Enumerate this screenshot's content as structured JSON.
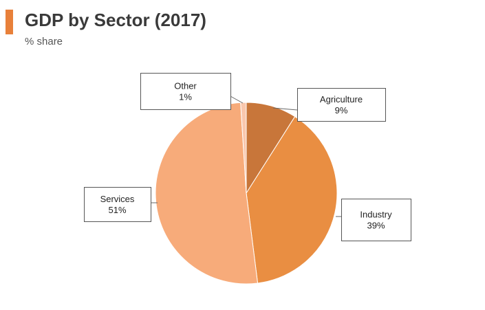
{
  "header": {
    "title": "GDP by Sector (2017)",
    "subtitle": "% share"
  },
  "chart_data": {
    "type": "pie",
    "title": "GDP by Sector (2017)",
    "subtitle": "% share",
    "unit": "%",
    "slices": [
      {
        "label": "Agriculture",
        "value": 9,
        "value_label": "9%",
        "color": "#c8763a"
      },
      {
        "label": "Industry",
        "value": 39,
        "value_label": "39%",
        "color": "#e98e42"
      },
      {
        "label": "Services",
        "value": 51,
        "value_label": "51%",
        "color": "#f7ab7a"
      },
      {
        "label": "Other",
        "value": 1,
        "value_label": "1%",
        "color": "#f9c7ad"
      }
    ],
    "start": "12 o'clock",
    "direction": "clockwise",
    "legend": "none"
  }
}
